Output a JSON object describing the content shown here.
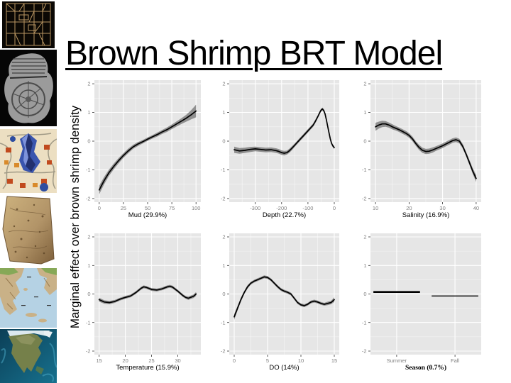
{
  "title": "Brown Shrimp BRT Model",
  "y_axis_label": "Marginal effect over brown shrimp density",
  "sidebar": {
    "images": [
      {
        "name": "ancient-grid-city-plan"
      },
      {
        "name": "babylonian-world-map-tablet"
      },
      {
        "name": "medieval-city-map"
      },
      {
        "name": "old-parchment-map"
      },
      {
        "name": "greece-topographic-map"
      },
      {
        "name": "north-america-satellite-map"
      }
    ]
  },
  "colors": {
    "panel": "#e6e6e6",
    "grid": "#ffffff",
    "curve": "#000000",
    "band": "#808080",
    "tick_mark": "#333333",
    "tick_text": "#7f7f7f",
    "axis_text": "#000000"
  },
  "chart_data": [
    {
      "type": "line",
      "xlabel": "Mud (29.9%)",
      "xticks": [
        0,
        25,
        50,
        75,
        100
      ],
      "xlim": [
        -5,
        105
      ],
      "ylim": [
        -2.125,
        2.125
      ],
      "yticks": [
        -2,
        -1,
        0,
        1,
        2
      ],
      "x": [
        0,
        5,
        10,
        15,
        20,
        25,
        30,
        35,
        40,
        45,
        50,
        55,
        60,
        65,
        70,
        75,
        80,
        85,
        90,
        95,
        100
      ],
      "y": [
        -1.7,
        -1.38,
        -1.1,
        -0.88,
        -0.68,
        -0.5,
        -0.34,
        -0.2,
        -0.1,
        -0.02,
        0.07,
        0.15,
        0.23,
        0.32,
        0.4,
        0.5,
        0.6,
        0.7,
        0.8,
        0.92,
        1.05
      ],
      "band": [
        0.15,
        0.13,
        0.11,
        0.1,
        0.09,
        0.08,
        0.08,
        0.07,
        0.07,
        0.06,
        0.06,
        0.06,
        0.07,
        0.07,
        0.08,
        0.08,
        0.09,
        0.1,
        0.12,
        0.16,
        0.22
      ]
    },
    {
      "type": "line",
      "xlabel": "Depth (22.7%)",
      "xticks": [
        -300,
        -200,
        -100,
        0
      ],
      "xlim": [
        -399,
        19
      ],
      "ylim": [
        -2.125,
        2.125
      ],
      "yticks": [
        -2,
        -1,
        0,
        1,
        2
      ],
      "x": [
        -380,
        -360,
        -340,
        -320,
        -300,
        -280,
        -260,
        -240,
        -220,
        -210,
        -200,
        -190,
        -180,
        -170,
        -160,
        -150,
        -140,
        -130,
        -120,
        -110,
        -100,
        -90,
        -80,
        -70,
        -60,
        -55,
        -50,
        -45,
        -40,
        -35,
        -30,
        -25,
        -20,
        -15,
        -10,
        -5,
        0
      ],
      "y": [
        -0.3,
        -0.34,
        -0.32,
        -0.29,
        -0.27,
        -0.29,
        -0.31,
        -0.3,
        -0.33,
        -0.36,
        -0.4,
        -0.42,
        -0.4,
        -0.33,
        -0.24,
        -0.14,
        -0.04,
        0.06,
        0.16,
        0.26,
        0.36,
        0.46,
        0.56,
        0.72,
        0.9,
        1.0,
        1.08,
        1.12,
        1.07,
        0.95,
        0.75,
        0.52,
        0.3,
        0.08,
        -0.08,
        -0.17,
        -0.22
      ],
      "band": [
        0.11,
        0.1,
        0.09,
        0.09,
        0.08,
        0.08,
        0.08,
        0.08,
        0.08,
        0.08,
        0.08,
        0.08,
        0.07,
        0.07,
        0.07,
        0.06,
        0.06,
        0.06,
        0.06,
        0.06,
        0.06,
        0.06,
        0.06,
        0.06,
        0.05,
        0.05,
        0.05,
        0.05,
        0.05,
        0.05,
        0.04,
        0.04,
        0.04,
        0.04,
        0.04,
        0.05,
        0.06
      ]
    },
    {
      "type": "line",
      "xlabel": "Salinity (16.9%)",
      "xticks": [
        10,
        20,
        30,
        40
      ],
      "xlim": [
        8.5,
        41.5
      ],
      "ylim": [
        -2.125,
        2.125
      ],
      "yticks": [
        -2,
        -1,
        0,
        1,
        2
      ],
      "x": [
        10,
        11,
        12,
        13,
        14,
        15,
        16,
        17,
        18,
        19,
        20,
        21,
        22,
        23,
        24,
        25,
        26,
        27,
        28,
        29,
        30,
        31,
        32,
        33,
        34,
        35,
        36,
        37,
        38,
        39,
        40
      ],
      "y": [
        0.5,
        0.56,
        0.6,
        0.6,
        0.56,
        0.5,
        0.45,
        0.4,
        0.34,
        0.28,
        0.2,
        0.08,
        -0.08,
        -0.22,
        -0.32,
        -0.36,
        -0.35,
        -0.31,
        -0.26,
        -0.21,
        -0.16,
        -0.1,
        -0.04,
        0.02,
        0.05,
        0.0,
        -0.18,
        -0.45,
        -0.75,
        -1.05,
        -1.3
      ],
      "band": [
        0.14,
        0.12,
        0.11,
        0.1,
        0.09,
        0.09,
        0.08,
        0.08,
        0.08,
        0.08,
        0.08,
        0.08,
        0.08,
        0.09,
        0.09,
        0.09,
        0.09,
        0.09,
        0.08,
        0.08,
        0.08,
        0.08,
        0.08,
        0.08,
        0.08,
        0.08,
        0.08,
        0.08,
        0.09,
        0.1,
        0.12
      ]
    },
    {
      "type": "line",
      "xlabel": "Temperature (15.9%)",
      "xticks": [
        15,
        20,
        25,
        30
      ],
      "xlim": [
        14.1,
        34.4
      ],
      "ylim": [
        -2.125,
        2.125
      ],
      "yticks": [
        -2,
        -1,
        0,
        1,
        2
      ],
      "x": [
        15,
        16,
        17,
        18,
        19,
        20,
        21,
        22,
        23,
        23.5,
        24,
        25,
        26,
        27,
        28,
        28.5,
        29,
        30,
        31,
        31.5,
        32,
        33,
        33.5
      ],
      "y": [
        -0.2,
        -0.28,
        -0.3,
        -0.26,
        -0.18,
        -0.12,
        -0.07,
        0.05,
        0.2,
        0.25,
        0.23,
        0.16,
        0.14,
        0.18,
        0.25,
        0.27,
        0.24,
        0.1,
        -0.06,
        -0.12,
        -0.15,
        -0.08,
        0.0
      ],
      "band": [
        0.07,
        0.06,
        0.06,
        0.05,
        0.05,
        0.05,
        0.05,
        0.05,
        0.05,
        0.05,
        0.05,
        0.05,
        0.05,
        0.05,
        0.05,
        0.05,
        0.05,
        0.05,
        0.05,
        0.05,
        0.06,
        0.06,
        0.07
      ]
    },
    {
      "type": "line",
      "xlabel": "DO (14%)",
      "xticks": [
        0,
        5,
        10,
        15
      ],
      "xlim": [
        -0.75,
        15.75
      ],
      "ylim": [
        -2.125,
        2.125
      ],
      "yticks": [
        -2,
        -1,
        0,
        1,
        2
      ],
      "x": [
        0,
        0.5,
        1,
        1.5,
        2,
        2.5,
        3,
        3.5,
        4,
        4.5,
        5,
        5.5,
        6,
        6.5,
        7,
        7.5,
        8,
        8.5,
        9,
        9.5,
        10,
        10.5,
        11,
        11.5,
        12,
        12.5,
        13,
        13.5,
        14,
        14.5,
        15
      ],
      "y": [
        -0.8,
        -0.5,
        -0.2,
        0.05,
        0.25,
        0.38,
        0.45,
        0.5,
        0.55,
        0.6,
        0.58,
        0.5,
        0.38,
        0.26,
        0.16,
        0.1,
        0.06,
        0.0,
        -0.15,
        -0.3,
        -0.38,
        -0.41,
        -0.36,
        -0.28,
        -0.25,
        -0.28,
        -0.33,
        -0.36,
        -0.33,
        -0.3,
        -0.2
      ],
      "band": [
        0.1,
        0.08,
        0.07,
        0.06,
        0.06,
        0.05,
        0.05,
        0.05,
        0.05,
        0.05,
        0.05,
        0.05,
        0.05,
        0.05,
        0.05,
        0.05,
        0.05,
        0.05,
        0.05,
        0.05,
        0.05,
        0.05,
        0.05,
        0.05,
        0.05,
        0.05,
        0.05,
        0.05,
        0.06,
        0.06,
        0.08
      ]
    },
    {
      "type": "segments",
      "xlabel": "Season (0.7%)",
      "categories": [
        "Summer",
        "Fall"
      ],
      "values": [
        0.07,
        -0.07
      ],
      "line_widths": [
        2.6,
        1.3
      ],
      "half_width": 0.4,
      "xlim": [
        0.55,
        2.45
      ],
      "ylim": [
        -2.125,
        2.125
      ],
      "yticks": [
        -2,
        -1,
        0,
        1,
        2
      ]
    }
  ]
}
